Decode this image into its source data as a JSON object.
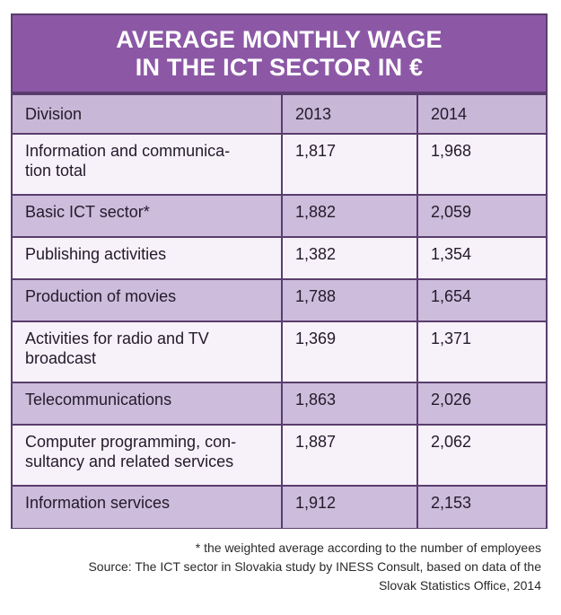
{
  "title": {
    "line1": "AVERAGE MONTHLY WAGE",
    "line2": "IN THE ICT SECTOR IN €"
  },
  "table": {
    "headers": [
      "Division",
      "2013",
      "2014"
    ],
    "rows": [
      {
        "division": "Information and communica-\ntion total",
        "y2013": "1,817",
        "y2014": "1,968"
      },
      {
        "division": "Basic ICT sector*",
        "y2013": "1,882",
        "y2014": "2,059"
      },
      {
        "division": "Publishing activities",
        "y2013": "1,382",
        "y2014": "1,354"
      },
      {
        "division": "Production of movies",
        "y2013": "1,788",
        "y2014": "1,654"
      },
      {
        "division": "Activities for radio and TV\nbroadcast",
        "y2013": "1,369",
        "y2014": "1,371"
      },
      {
        "division": "Telecommunications",
        "y2013": "1,863",
        "y2014": "2,026"
      },
      {
        "division": "Computer programming, con-\nsultancy and related services",
        "y2013": "1,887",
        "y2014": "2,062"
      },
      {
        "division": "Information services",
        "y2013": "1,912",
        "y2014": "2,153"
      }
    ]
  },
  "footnote": {
    "line1": "* the weighted average according to the number of employees",
    "line2": "Source: The ICT sector in Slovakia study by INESS Consult, based on data of the",
    "line3": "Slovak Statistics Office, 2014"
  },
  "colors": {
    "title_bg": "#8c58a6",
    "header_bg": "#c9b7d8",
    "row_shade": "#cdbcdb",
    "row_plain": "#f7f2f9",
    "border": "#5a3d6e"
  }
}
